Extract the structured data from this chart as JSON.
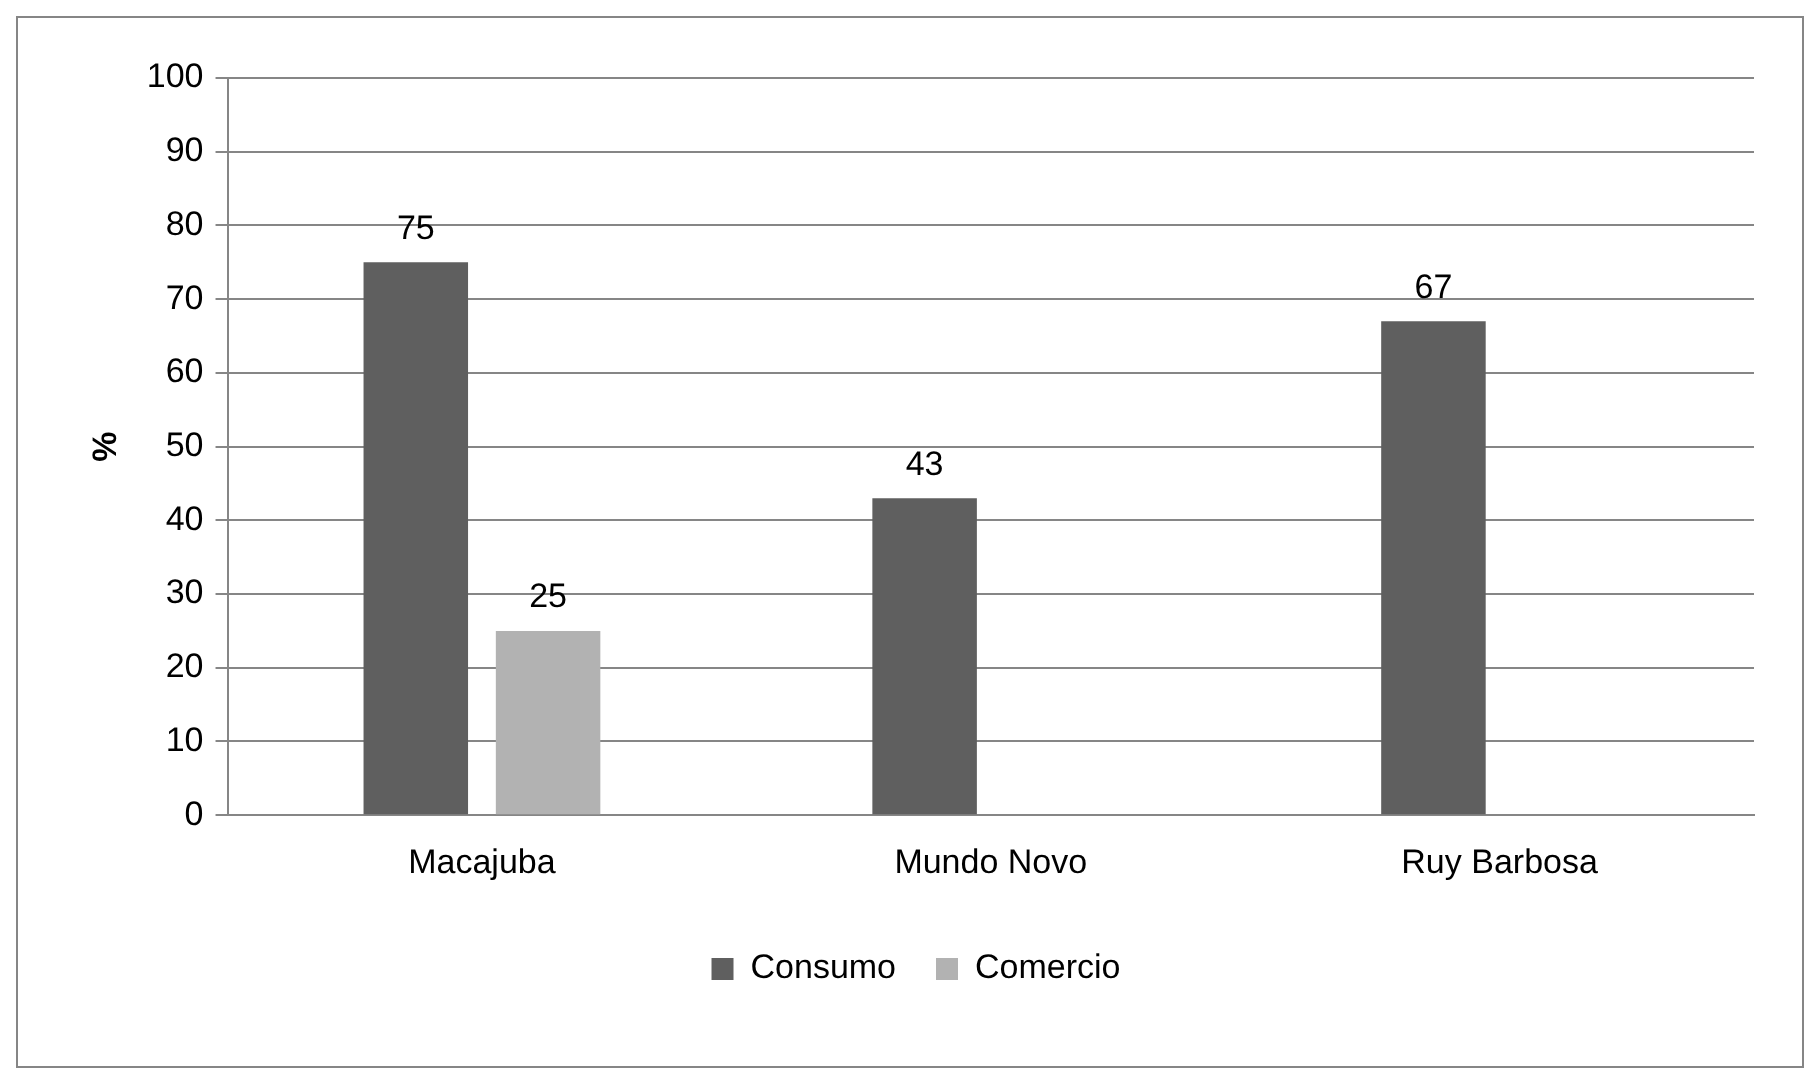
{
  "chart_data": {
    "type": "bar",
    "ylabel": "%",
    "categories": [
      "Macajuba",
      "Mundo Novo",
      "Ruy Barbosa"
    ],
    "series": [
      {
        "name": "Consumo",
        "color": "#5f5f5f",
        "values": [
          75,
          43,
          67
        ]
      },
      {
        "name": "Comercio",
        "color": "#b2b2b2",
        "values": [
          25,
          null,
          null
        ]
      }
    ],
    "ylim": [
      0,
      100
    ],
    "yticks": [
      0,
      10,
      20,
      30,
      40,
      50,
      60,
      70,
      80,
      90,
      100
    ],
    "grid": "y",
    "legend": "bottom",
    "data_labels": true
  }
}
